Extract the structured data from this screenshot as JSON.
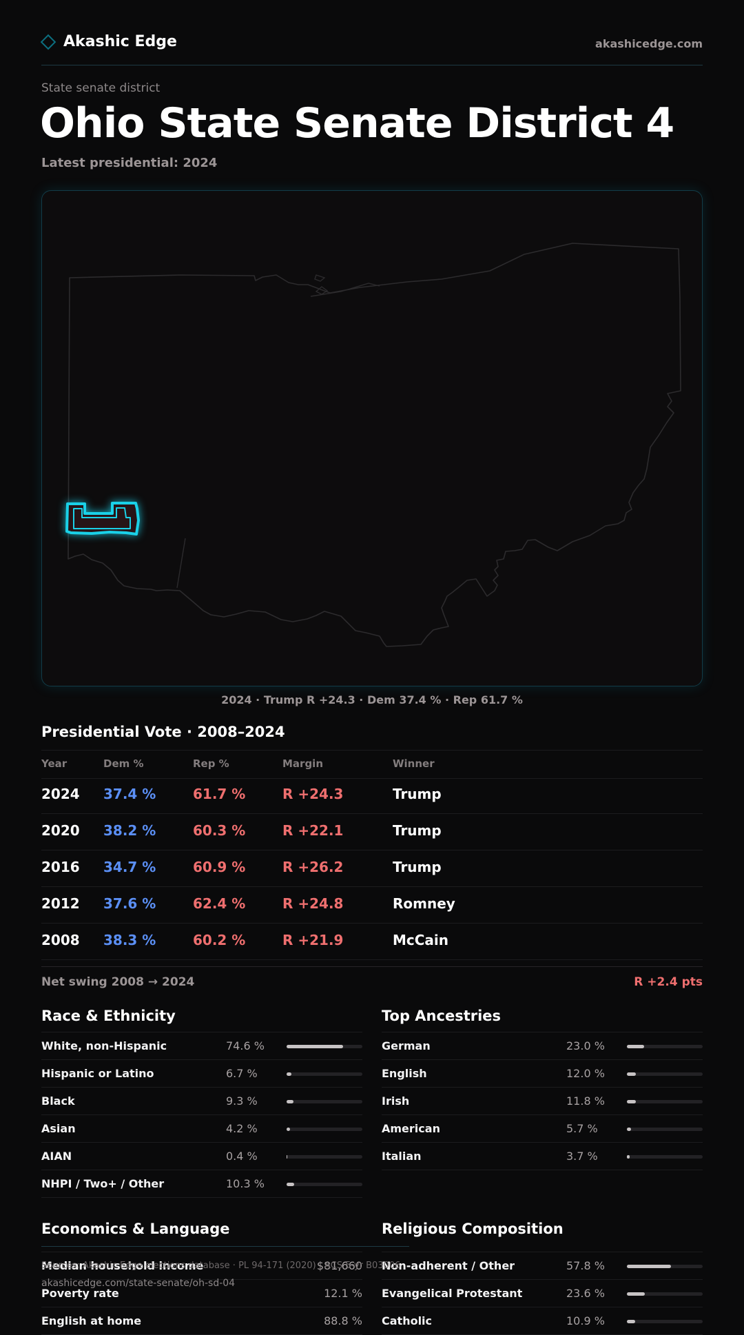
{
  "header": {
    "brand": "Akashic Edge",
    "site_url": "akashicedge.com"
  },
  "page": {
    "kicker": "State senate district",
    "title": "Ohio State Senate District 4",
    "subtitle": "Latest presidential: 2024"
  },
  "map": {
    "caption": "2024 · Trump R +24.3 · Dem 37.4 % · Rep 61.7 %",
    "highlight_color": "#1ad1e8"
  },
  "vote": {
    "title": "Presidential Vote · 2008–2024",
    "headers": {
      "year": "Year",
      "dem": "Dem %",
      "rep": "Rep %",
      "margin": "Margin",
      "winner": "Winner"
    },
    "rows": [
      {
        "year": "2024",
        "dem": "37.4 %",
        "rep": "61.7 %",
        "margin": "R +24.3",
        "winner": "Trump"
      },
      {
        "year": "2020",
        "dem": "38.2 %",
        "rep": "60.3 %",
        "margin": "R +22.1",
        "winner": "Trump"
      },
      {
        "year": "2016",
        "dem": "34.7 %",
        "rep": "60.9 %",
        "margin": "R +26.2",
        "winner": "Trump"
      },
      {
        "year": "2012",
        "dem": "37.6 %",
        "rep": "62.4 %",
        "margin": "R +24.8",
        "winner": "Romney"
      },
      {
        "year": "2008",
        "dem": "38.3 %",
        "rep": "60.2 %",
        "margin": "R +21.9",
        "winner": "McCain"
      }
    ],
    "swing_label": "Net swing 2008 → 2024",
    "swing_value": "R +2.4 pts"
  },
  "race": {
    "title": "Race & Ethnicity",
    "rows": [
      {
        "label": "White, non-Hispanic",
        "value": "74.6 %",
        "pct": 74.6
      },
      {
        "label": "Hispanic or Latino",
        "value": "6.7 %",
        "pct": 6.7
      },
      {
        "label": "Black",
        "value": "9.3 %",
        "pct": 9.3
      },
      {
        "label": "Asian",
        "value": "4.2 %",
        "pct": 4.2
      },
      {
        "label": "AIAN",
        "value": "0.4 %",
        "pct": 0.4
      },
      {
        "label": "NHPI / Two+ / Other",
        "value": "10.3 %",
        "pct": 10.3
      }
    ]
  },
  "ancestry": {
    "title": "Top Ancestries",
    "rows": [
      {
        "label": "German",
        "value": "23.0 %",
        "pct": 23.0
      },
      {
        "label": "English",
        "value": "12.0 %",
        "pct": 12.0
      },
      {
        "label": "Irish",
        "value": "11.8 %",
        "pct": 11.8
      },
      {
        "label": "American",
        "value": "5.7 %",
        "pct": 5.7
      },
      {
        "label": "Italian",
        "value": "3.7 %",
        "pct": 3.7
      }
    ]
  },
  "economics": {
    "title": "Economics & Language",
    "rows": [
      {
        "label": "Median household income",
        "value": "$81,660"
      },
      {
        "label": "Poverty rate",
        "value": "12.1 %"
      },
      {
        "label": "English at home",
        "value": "88.8 %"
      }
    ]
  },
  "religion": {
    "title": "Religious Composition",
    "rows": [
      {
        "label": "Non-adherent / Other",
        "value": "57.8 %",
        "pct": 57.8
      },
      {
        "label": "Evangelical Protestant",
        "value": "23.6 %",
        "pct": 23.6
      },
      {
        "label": "Catholic",
        "value": "10.9 %",
        "pct": 10.9
      }
    ]
  },
  "footer": {
    "sources": "Sources: Akashic Edge elections database · PL 94-171 (2020) · ACS 5-yr B03006",
    "url": "akashicedge.com/state-senate/oh-sd-04"
  }
}
